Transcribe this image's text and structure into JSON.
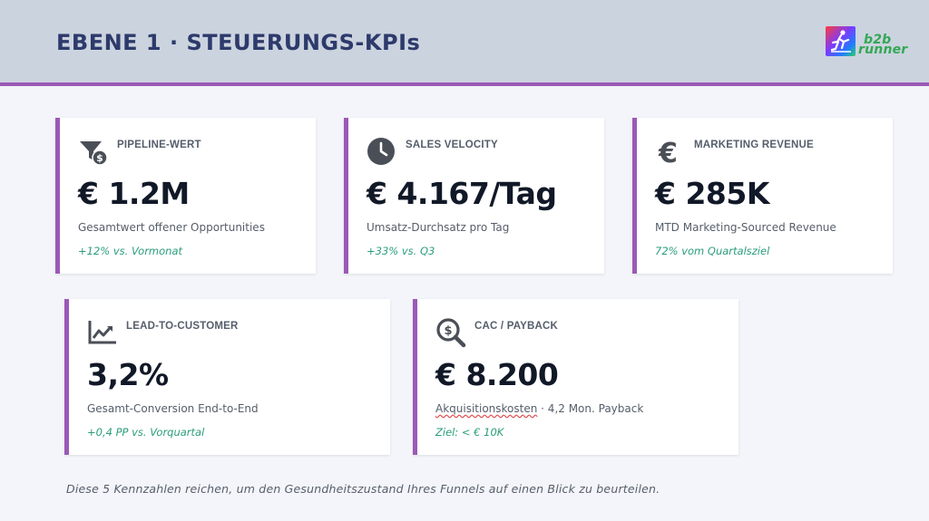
{
  "header": {
    "title": "EBENE 1 · STEUERUNGS-KPIs",
    "logo_text_top": "b2b",
    "logo_text_bottom": "runner"
  },
  "colors": {
    "accent": "#9b59b6",
    "header_bg": "#cbd3df",
    "title": "#2d3a6b",
    "trend": "#2a9d7c"
  },
  "kpis": [
    {
      "icon": "funnel-dollar-icon",
      "label": "PIPELINE-WERT",
      "value": "€ 1.2M",
      "description": "Gesamtwert offener Opportunities",
      "trend": "+12% vs. Vormonat"
    },
    {
      "icon": "clock-icon",
      "label": "SALES VELOCITY",
      "value": "€ 4.167/Tag",
      "description": "Umsatz-Durchsatz pro Tag",
      "trend": "+33% vs. Q3"
    },
    {
      "icon": "euro-icon",
      "label": "MARKETING REVENUE",
      "value": "€ 285K",
      "description": "MTD Marketing-Sourced Revenue",
      "trend": "72% vom Quartalsziel"
    },
    {
      "icon": "chart-line-icon",
      "label": "LEAD-TO-CUSTOMER",
      "value": "3,2%",
      "description": "Gesamt-Conversion End-to-End",
      "trend": "+0,4 PP vs. Vorquartal"
    },
    {
      "icon": "search-dollar-icon",
      "label": "CAC / PAYBACK",
      "value": "€ 8.200",
      "description_part1": "Akquisitionskosten",
      "description_part2": " · 4,2 Mon. Payback",
      "trend": "Ziel: < € 10K"
    }
  ],
  "footer": {
    "note": "Diese 5 Kennzahlen reichen, um den Gesundheitszustand Ihres Funnels auf einen Blick zu beurteilen."
  }
}
